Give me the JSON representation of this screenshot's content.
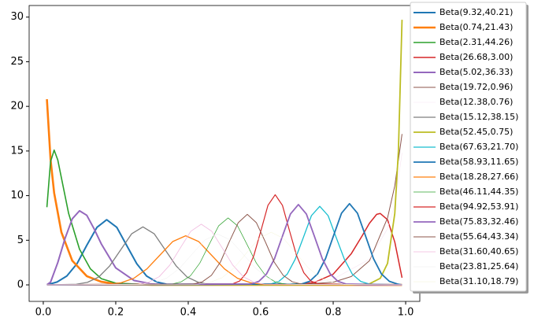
{
  "chart_data": {
    "type": "line",
    "xlim": [
      -0.039,
      1.039
    ],
    "ylim": [
      -1.85,
      31.3
    ],
    "xticks": [
      {
        "value": 0,
        "label": "0.0"
      },
      {
        "value": 0.2,
        "label": "0.2"
      },
      {
        "value": 0.4,
        "label": "0.4"
      },
      {
        "value": 0.6,
        "label": "0.6"
      },
      {
        "value": 0.8,
        "label": "0.8"
      },
      {
        "value": 1,
        "label": "1.0"
      }
    ],
    "yticks": [
      0,
      5,
      10,
      15,
      20,
      25,
      30
    ],
    "grid": false,
    "legend": "upper right",
    "series": [
      {
        "name": "Beta(9.32,40.21)",
        "color": "#1f77b4",
        "linewidth": 2,
        "x": [
          0.01,
          0.038,
          0.065,
          0.093,
          0.12,
          0.148,
          0.175,
          0.203,
          0.23,
          0.258,
          0.285,
          0.313,
          0.34,
          0.99
        ],
        "values": [
          0,
          0.32,
          0.99,
          2.37,
          4.43,
          6.44,
          7.3,
          6.44,
          4.43,
          2.37,
          0.99,
          0.32,
          0.08,
          0
        ]
      },
      {
        "name": "Beta(0.74,21.43)",
        "color": "#ff7f0e",
        "linewidth": 2.6,
        "x": [
          0.01,
          0.02,
          0.03,
          0.05,
          0.08,
          0.12,
          0.16,
          0.2,
          0.3,
          0.99
        ],
        "values": [
          20.8,
          14.1,
          10.3,
          5.9,
          2.71,
          0.98,
          0.35,
          0.12,
          0.01,
          0
        ]
      },
      {
        "name": "Beta(2.31,44.26)",
        "color": "#2ca02c",
        "linewidth": 1.6,
        "x": [
          0.01,
          0.02,
          0.03,
          0.04,
          0.05,
          0.07,
          0.1,
          0.13,
          0.16,
          0.2,
          0.3,
          0.99
        ],
        "values": [
          8.7,
          13.8,
          15.1,
          14,
          12,
          8,
          4,
          1.8,
          0.7,
          0.2,
          0,
          0
        ]
      },
      {
        "name": "Beta(26.68,3.00)",
        "color": "#d62728",
        "linewidth": 1.5,
        "x": [
          0.01,
          0.7,
          0.75,
          0.8,
          0.85,
          0.88,
          0.9,
          0.92,
          0.93,
          0.95,
          0.97,
          0.99
        ],
        "values": [
          0,
          0,
          0.3,
          1.2,
          3.5,
          5.5,
          6.9,
          7.9,
          8,
          7.3,
          4.8,
          0.8
        ]
      },
      {
        "name": "Beta(5.02,36.33)",
        "color": "#9467bd",
        "linewidth": 2,
        "x": [
          0.01,
          0.02,
          0.04,
          0.06,
          0.08,
          0.1,
          0.12,
          0.14,
          0.16,
          0.2,
          0.25,
          0.3,
          0.35,
          0.99
        ],
        "values": [
          0.02,
          0.3,
          2.5,
          5.2,
          7.4,
          8.3,
          7.8,
          6.3,
          4.6,
          1.9,
          0.5,
          0.1,
          0,
          0
        ]
      },
      {
        "name": "Beta(19.72,0.96)",
        "color": "#8c564b",
        "linewidth": 1,
        "x": [
          0.01,
          0.6,
          0.7,
          0.8,
          0.85,
          0.9,
          0.95,
          0.97,
          0.99
        ],
        "values": [
          0,
          0,
          0.02,
          0.3,
          0.94,
          2.7,
          7.5,
          11.1,
          16.9
        ]
      },
      {
        "name": "Beta(12.38,0.76)",
        "color": "#f7e4f1",
        "linewidth": 0.6,
        "x": [
          0.01,
          0.6,
          0.7,
          0.8,
          0.9,
          0.95,
          0.97,
          0.99
        ],
        "values": [
          0,
          0,
          0.13,
          0.64,
          2.88,
          6.3,
          9,
          14.8
        ]
      },
      {
        "name": "Beta(15.12,38.15)",
        "color": "#7f7f7f",
        "linewidth": 1.3,
        "x": [
          0.01,
          0.091,
          0.122,
          0.153,
          0.183,
          0.214,
          0.244,
          0.275,
          0.306,
          0.336,
          0.367,
          0.397,
          0.428,
          0.459,
          0.99
        ],
        "values": [
          0,
          0.07,
          0.29,
          0.88,
          2.11,
          3.95,
          5.73,
          6.5,
          5.73,
          3.95,
          2.11,
          0.88,
          0.29,
          0.07,
          0
        ]
      },
      {
        "name": "Beta(52.45,0.75)",
        "color": "#bcbd22",
        "linewidth": 1.8,
        "x": [
          0.01,
          0.85,
          0.9,
          0.93,
          0.95,
          0.97,
          0.98,
          0.99
        ],
        "values": [
          0,
          0,
          0.12,
          0.74,
          2.4,
          8,
          15,
          29.7
        ]
      },
      {
        "name": "Beta(67.63,21.70)",
        "color": "#17becf",
        "linewidth": 1.3,
        "x": [
          0.01,
          0.628,
          0.65,
          0.673,
          0.695,
          0.718,
          0.74,
          0.763,
          0.786,
          0.808,
          0.831,
          0.853,
          0.876,
          0.899,
          0.99
        ],
        "values": [
          0,
          0.1,
          0.39,
          1.19,
          2.86,
          5.34,
          7.76,
          8.8,
          7.76,
          5.34,
          2.86,
          1.19,
          0.39,
          0.1,
          0
        ]
      },
      {
        "name": "Beta(58.93,11.65)",
        "color": "#1f77b4",
        "linewidth": 1.8,
        "x": [
          0.01,
          0.713,
          0.735,
          0.757,
          0.779,
          0.801,
          0.823,
          0.845,
          0.867,
          0.889,
          0.911,
          0.933,
          0.955,
          0.977,
          0.99
        ],
        "values": [
          0,
          0.1,
          0.4,
          1.23,
          2.96,
          5.52,
          8.03,
          9.1,
          8.03,
          5.52,
          2.96,
          1.23,
          0.4,
          0.1,
          0
        ]
      },
      {
        "name": "Beta(18.28,27.66)",
        "color": "#ff7f0e",
        "linewidth": 1.3,
        "x": [
          0.01,
          0.179,
          0.215,
          0.25,
          0.286,
          0.322,
          0.357,
          0.393,
          0.429,
          0.464,
          0.5,
          0.536,
          0.572,
          0.607,
          0.99
        ],
        "values": [
          0,
          0.06,
          0.24,
          0.74,
          1.79,
          3.34,
          4.85,
          5.5,
          4.85,
          3.34,
          1.79,
          0.74,
          0.24,
          0.06,
          0
        ]
      },
      {
        "name": "Beta(46.11,44.35)",
        "color": "#2ca02c",
        "linewidth": 0.7,
        "x": [
          0.01,
          0.354,
          0.38,
          0.406,
          0.432,
          0.458,
          0.484,
          0.51,
          0.536,
          0.562,
          0.588,
          0.614,
          0.64,
          0.666,
          0.99
        ],
        "values": [
          0,
          0.08,
          0.33,
          1.01,
          2.44,
          4.55,
          6.62,
          7.5,
          6.62,
          4.55,
          2.44,
          1.01,
          0.33,
          0.08,
          0
        ]
      },
      {
        "name": "Beta(94.92,53.91)",
        "color": "#d62728",
        "linewidth": 1.2,
        "x": [
          0.01,
          0.522,
          0.542,
          0.561,
          0.581,
          0.601,
          0.62,
          0.64,
          0.66,
          0.679,
          0.699,
          0.719,
          0.738,
          0.758,
          0.99
        ],
        "values": [
          0,
          0.11,
          0.44,
          1.36,
          3.28,
          6.13,
          8.91,
          10.1,
          8.91,
          6.13,
          3.28,
          1.36,
          0.44,
          0.11,
          0
        ]
      },
      {
        "name": "Beta(75.83,32.46)",
        "color": "#9467bd",
        "linewidth": 1.8,
        "x": [
          0.01,
          0.573,
          0.595,
          0.616,
          0.638,
          0.66,
          0.682,
          0.704,
          0.726,
          0.748,
          0.77,
          0.792,
          0.813,
          0.835,
          0.99
        ],
        "values": [
          0,
          0.1,
          0.4,
          1.22,
          2.93,
          5.46,
          7.94,
          9,
          7.94,
          5.46,
          2.93,
          1.22,
          0.4,
          0.1,
          0
        ]
      },
      {
        "name": "Beta(55.64,43.34)",
        "color": "#8c564b",
        "linewidth": 1,
        "x": [
          0.01,
          0.414,
          0.439,
          0.464,
          0.489,
          0.513,
          0.538,
          0.563,
          0.588,
          0.613,
          0.637,
          0.662,
          0.687,
          0.712,
          0.99
        ],
        "values": [
          0,
          0.09,
          0.35,
          1.07,
          2.57,
          4.8,
          6.97,
          7.9,
          6.97,
          4.8,
          2.57,
          1.07,
          0.35,
          0.09,
          0
        ]
      },
      {
        "name": "Beta(31.60,40.65)",
        "color": "#f0b8de",
        "linewidth": 0.8,
        "x": [
          0.01,
          0.262,
          0.291,
          0.32,
          0.349,
          0.378,
          0.407,
          0.436,
          0.465,
          0.494,
          0.523,
          0.552,
          0.581,
          0.61,
          0.99
        ],
        "values": [
          0,
          0.07,
          0.3,
          0.92,
          2.21,
          4.13,
          6,
          6.8,
          6,
          4.13,
          2.21,
          0.92,
          0.3,
          0.07,
          0
        ]
      },
      {
        "name": "Beta(23.81,25.64)",
        "color": "#ededed",
        "linewidth": 0.5,
        "x": [
          0.01,
          0.271,
          0.306,
          0.341,
          0.376,
          0.411,
          0.446,
          0.481,
          0.516,
          0.551,
          0.586,
          0.621,
          0.656,
          0.691,
          0.99
        ],
        "values": [
          0,
          0.06,
          0.25,
          0.77,
          1.85,
          3.46,
          5.03,
          5.7,
          5.03,
          3.46,
          1.85,
          0.77,
          0.25,
          0.06,
          0
        ]
      },
      {
        "name": "Beta(31.10,18.79)",
        "color": "#f4f4d6",
        "linewidth": 0.5,
        "x": [
          0.01,
          0.425,
          0.459,
          0.493,
          0.527,
          0.561,
          0.595,
          0.629,
          0.663,
          0.697,
          0.731,
          0.765,
          0.799,
          0.833,
          0.99
        ],
        "values": [
          0,
          0.06,
          0.26,
          0.8,
          1.92,
          3.58,
          5.2,
          5.9,
          5.2,
          3.58,
          1.92,
          0.8,
          0.26,
          0.06,
          0
        ]
      }
    ]
  }
}
